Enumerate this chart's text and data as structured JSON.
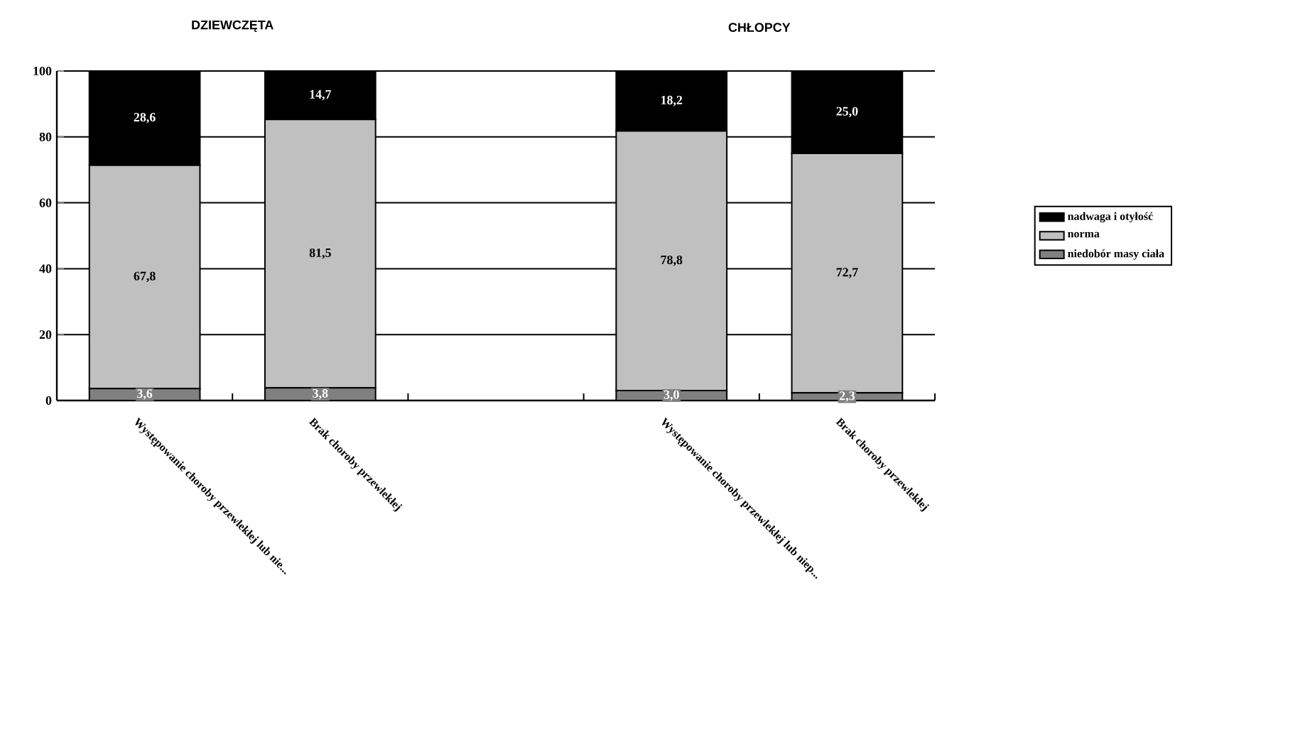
{
  "chart_data": {
    "type": "bar",
    "stacked": true,
    "annotations": [
      "DZIEWCZĘTA",
      "CHŁOPCY"
    ],
    "categories": [
      "Występowanie choroby przewlekłej lub nie...",
      "Brak choroby przewlekłej",
      null,
      "Występowanie choroby przewlekłej lub niep...",
      "Brak choroby przewlekłej"
    ],
    "series": [
      {
        "name": "niedobór masy ciała",
        "color": "#808080",
        "values": [
          3.6,
          3.8,
          null,
          3.0,
          2.3
        ],
        "value_labels": [
          "3,6",
          "3,8",
          null,
          "3,0",
          "2,3"
        ]
      },
      {
        "name": "norma",
        "color": "#c0c0c0",
        "values": [
          67.8,
          81.5,
          null,
          78.8,
          72.7
        ],
        "value_labels": [
          "67,8",
          "81,5",
          null,
          "78,8",
          "72,7"
        ]
      },
      {
        "name": "nadwaga i otyłość",
        "color": "#000000",
        "values": [
          28.6,
          14.7,
          null,
          18.2,
          25.0
        ],
        "value_labels": [
          "28,6",
          "14,7",
          null,
          "18,2",
          "25,0"
        ]
      }
    ],
    "ylim": [
      0,
      100
    ],
    "yticks": [
      0,
      20,
      40,
      60,
      80,
      100
    ],
    "grid": "y",
    "legend": "right"
  }
}
